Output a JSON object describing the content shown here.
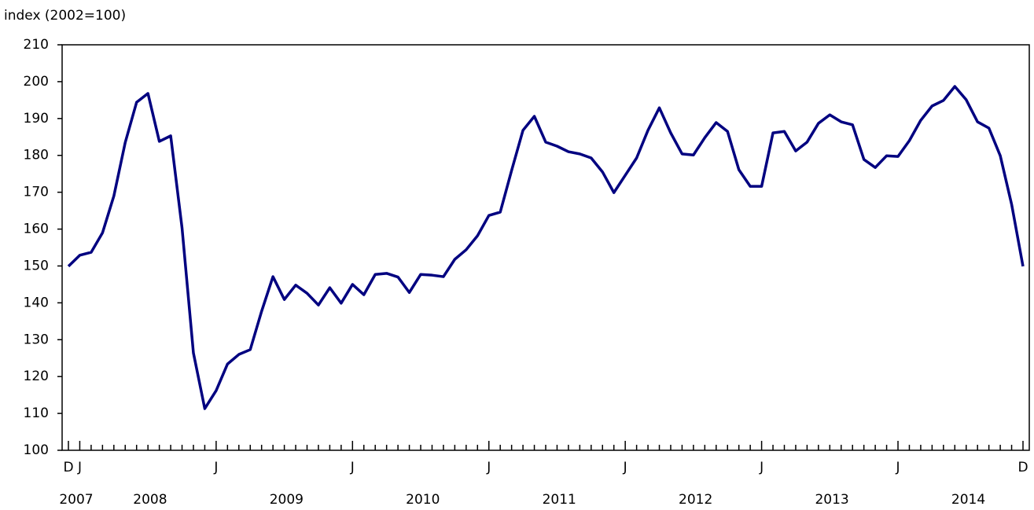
{
  "chart_data": {
    "type": "line",
    "y_axis_label": "index (2002=100)",
    "categories": [
      "D",
      "J",
      null,
      null,
      null,
      null,
      null,
      null,
      null,
      null,
      null,
      null,
      null,
      "J",
      null,
      null,
      null,
      null,
      null,
      null,
      null,
      null,
      null,
      null,
      null,
      "J",
      null,
      null,
      null,
      null,
      null,
      null,
      null,
      null,
      null,
      null,
      null,
      "J",
      null,
      null,
      null,
      null,
      null,
      null,
      null,
      null,
      null,
      null,
      null,
      "J",
      null,
      null,
      null,
      null,
      null,
      null,
      null,
      null,
      null,
      null,
      null,
      "J",
      null,
      null,
      null,
      null,
      null,
      null,
      null,
      null,
      null,
      null,
      null,
      "J",
      null,
      null,
      null,
      null,
      null,
      null,
      null,
      null,
      null,
      null,
      "D"
    ],
    "groups": [
      {
        "label": "2007",
        "count": 1
      },
      {
        "label": "2008",
        "count": 12
      },
      {
        "label": "2009",
        "count": 12
      },
      {
        "label": "2010",
        "count": 12
      },
      {
        "label": "2011",
        "count": 12
      },
      {
        "label": "2012",
        "count": 12
      },
      {
        "label": "2013",
        "count": 12
      },
      {
        "label": "2014",
        "count": 12
      }
    ],
    "values": [
      149.9,
      152.9,
      153.7,
      159,
      169,
      183.5,
      194.4,
      196.8,
      183.8,
      185.3,
      160.3,
      126.4,
      111.3,
      116.2,
      123.4,
      126,
      127.3,
      137.7,
      147.1,
      140.9,
      144.8,
      142.6,
      139.4,
      144.1,
      139.9,
      145,
      142.2,
      147.7,
      148,
      147,
      142.8,
      147.7,
      147.5,
      147.1,
      151.8,
      154.4,
      158.2,
      163.7,
      164.6,
      175.9,
      186.8,
      190.6,
      183.6,
      182.5,
      181,
      180.4,
      179.3,
      175.5,
      169.9,
      174.6,
      179.3,
      186.8,
      192.9,
      186.1,
      180.4,
      180.1,
      184.8,
      188.9,
      186.5,
      176.1,
      171.6,
      171.6,
      186.1,
      186.5,
      181.2,
      183.6,
      188.7,
      191,
      189.1,
      188.3,
      178.9,
      176.7,
      179.9,
      179.7,
      184,
      189.5,
      193.4,
      194.9,
      198.7,
      195.1,
      189.1,
      187.4,
      179.9,
      166.7,
      149.9
    ],
    "color": "#000080",
    "ylim": [
      100,
      210
    ],
    "yticks": [
      100,
      110,
      120,
      130,
      140,
      150,
      160,
      170,
      180,
      190,
      200,
      210
    ],
    "grid": false
  }
}
